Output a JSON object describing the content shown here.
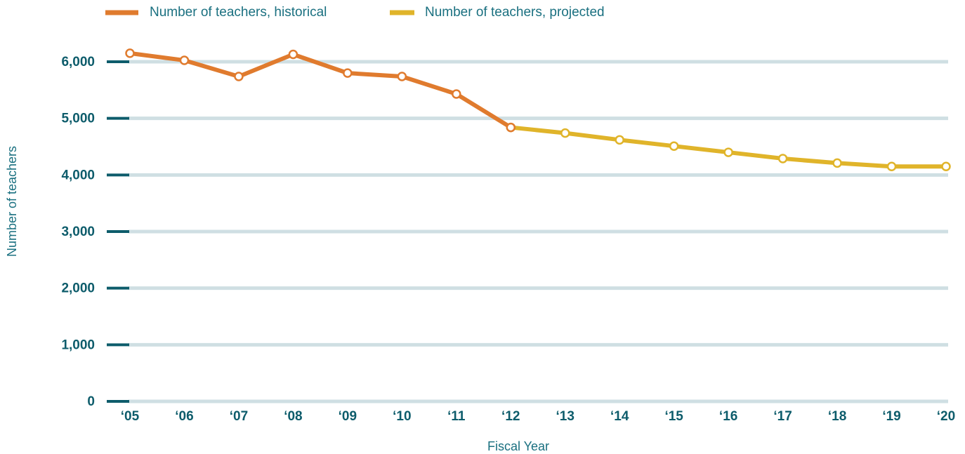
{
  "chart_data": {
    "type": "line",
    "x_label": "Fiscal Year",
    "y_label": "Number of teachers",
    "categories": [
      "‘05",
      "‘06",
      "‘07",
      "‘08",
      "‘09",
      "‘10",
      "‘11",
      "‘12",
      "‘13",
      "‘14",
      "‘15",
      "‘16",
      "‘17",
      "‘18",
      "‘19",
      "‘20"
    ],
    "series": [
      {
        "name": "Number of teachers, historical",
        "color": "#e07b2e",
        "values": [
          6150,
          6025,
          5740,
          6130,
          5800,
          5740,
          5430,
          4840,
          null,
          null,
          null,
          null,
          null,
          null,
          null,
          null
        ]
      },
      {
        "name": "Number of teachers, projected",
        "color": "#e0b42a",
        "values": [
          null,
          null,
          null,
          null,
          null,
          null,
          null,
          4840,
          4740,
          4620,
          4510,
          4400,
          4290,
          4210,
          4150,
          4150
        ]
      }
    ],
    "ylim": [
      0,
      6000
    ],
    "yticks": [
      0,
      {
        "value": 1000,
        "label": "1,000"
      },
      {
        "value": 2000,
        "label": "2,000"
      },
      {
        "value": 3000,
        "label": "3,000"
      },
      {
        "value": 4000,
        "label": "4,000"
      },
      {
        "value": 5000,
        "label": "5,000"
      },
      {
        "value": 6000,
        "label": "6,000"
      }
    ],
    "grid": true,
    "legend": "top"
  }
}
